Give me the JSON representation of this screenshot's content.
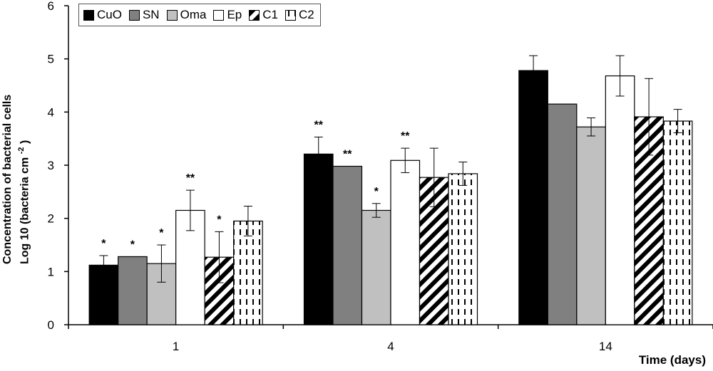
{
  "chart_data": {
    "type": "bar",
    "categories": [
      "1",
      "4",
      "14"
    ],
    "ylabel_line1": "Concentration of bacterial cells",
    "ylabel_line2": "Log 10 (bacteria cm",
    "ylabel_sup": "-2",
    "ylabel_end": " )",
    "xlabel": "Time (days)",
    "ylim": [
      0,
      6
    ],
    "yticks": [
      "0",
      "1",
      "2",
      "3",
      "4",
      "5",
      "6"
    ],
    "series": [
      {
        "name": "CuO",
        "fill": "solid",
        "color": "#000000",
        "values": [
          1.12,
          3.21,
          4.78
        ],
        "errors": [
          0.18,
          0.32,
          0.28
        ],
        "sig": [
          "*",
          "**",
          ""
        ]
      },
      {
        "name": "SN",
        "fill": "solid",
        "color": "#808080",
        "values": [
          1.28,
          2.98,
          4.15
        ],
        "errors": [
          0,
          0,
          0
        ],
        "sig": [
          "*",
          "**",
          ""
        ]
      },
      {
        "name": "Oma",
        "fill": "solid",
        "color": "#c0c0c0",
        "values": [
          1.15,
          2.15,
          3.72
        ],
        "errors": [
          0.35,
          0.13,
          0.17
        ],
        "sig": [
          "*",
          "*",
          ""
        ]
      },
      {
        "name": "Ep",
        "fill": "solid",
        "color": "#ffffff",
        "values": [
          2.15,
          3.09,
          4.68
        ],
        "errors": [
          0.38,
          0.23,
          0.38
        ],
        "sig": [
          "**",
          "**",
          ""
        ]
      },
      {
        "name": "C1",
        "fill": "diagonal",
        "color": "#000000",
        "values": [
          1.27,
          2.77,
          3.91
        ],
        "errors": [
          0.48,
          0.55,
          0.72
        ],
        "sig": [
          "*",
          "",
          ""
        ]
      },
      {
        "name": "C2",
        "fill": "dashed",
        "color": "#000000",
        "values": [
          1.95,
          2.84,
          3.83
        ],
        "errors": [
          0.28,
          0.22,
          0.22
        ],
        "sig": [
          "",
          "",
          ""
        ]
      }
    ],
    "legend_position": "top-left",
    "grid": false
  }
}
